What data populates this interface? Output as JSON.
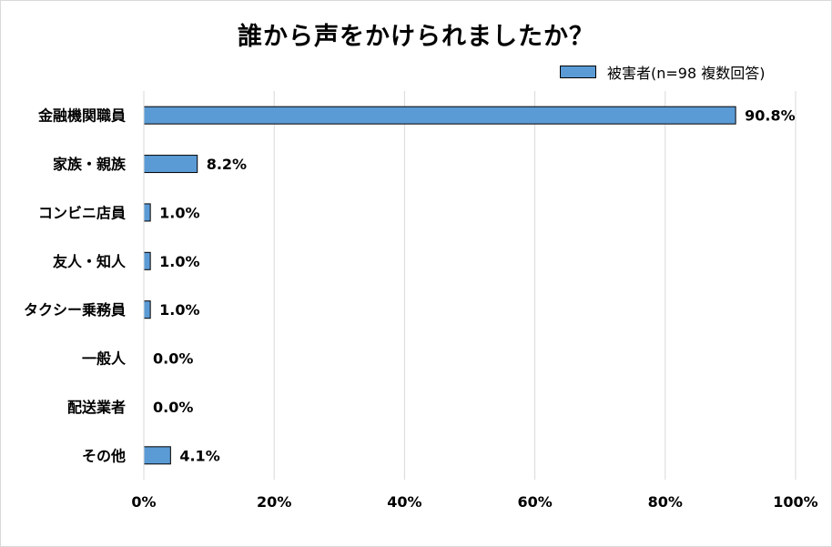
{
  "chart_data": {
    "type": "bar",
    "orientation": "horizontal",
    "title": "誰から声をかけられましたか？",
    "categories": [
      "金融機関職員",
      "家族・親族",
      "コンビニ店員",
      "友人・知人",
      "タクシー乗務員",
      "一般人",
      "配送業者",
      "その他"
    ],
    "series": [
      {
        "name": "被害者(n=98 複数回答)",
        "values": [
          90.8,
          8.2,
          1.0,
          1.0,
          1.0,
          0.0,
          0.0,
          4.1
        ],
        "color": "#5b9bd5"
      }
    ],
    "value_labels": [
      "90.8%",
      "8.2%",
      "1.0%",
      "1.0%",
      "1.0%",
      "0.0%",
      "0.0%",
      "4.1%"
    ],
    "xlim": [
      0,
      100
    ],
    "x_ticks": [
      "0%",
      "20%",
      "40%",
      "60%",
      "80%",
      "100%"
    ],
    "grid": true,
    "legend_position": "top-right",
    "gridline_color": "#d9d9d9",
    "bar_border_color": "#000000"
  }
}
